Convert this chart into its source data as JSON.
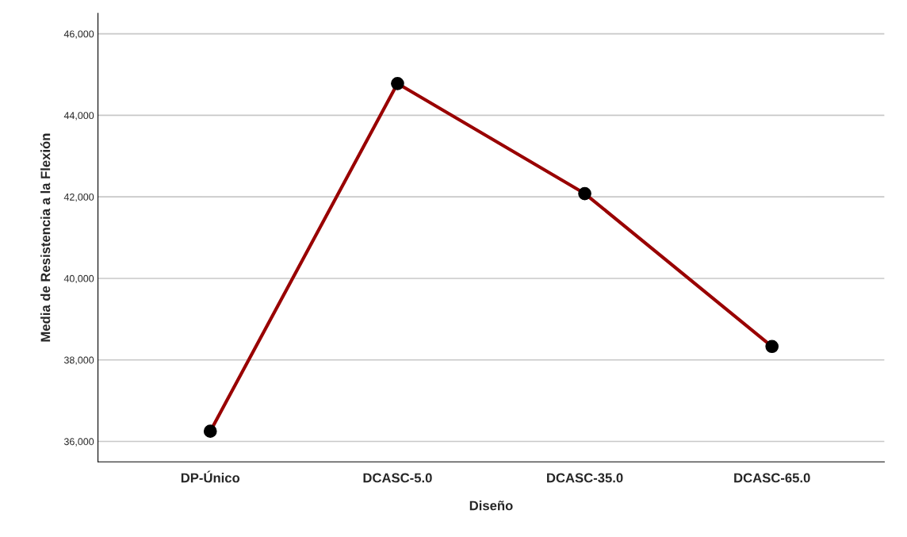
{
  "chart_data": {
    "type": "line",
    "xlabel": "Diseño",
    "ylabel": "Media de Resistencia a la Flexión",
    "categories": [
      "DP-Único",
      "DCASC-5.0",
      "DCASC-35.0",
      "DCASC-65.0"
    ],
    "series": [
      {
        "color": "#990000",
        "values": [
          36250,
          44780,
          42080,
          38330
        ]
      }
    ],
    "ylim": [
      35500,
      46500
    ],
    "yticks": [
      {
        "value": 36000,
        "label": "36,000"
      },
      {
        "value": 38000,
        "label": "38,000"
      },
      {
        "value": 40000,
        "label": "40,000"
      },
      {
        "value": 42000,
        "label": "42,000"
      },
      {
        "value": 44000,
        "label": "44,000"
      },
      {
        "value": 46000,
        "label": "46,000"
      }
    ],
    "grid": "y",
    "marker": "circle",
    "line_style": "solid"
  }
}
